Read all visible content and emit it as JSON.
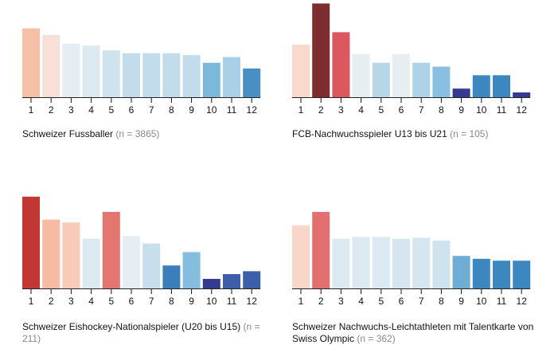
{
  "colors": {
    "1": "#f6bba2",
    "2": "#7d2d2d",
    "3": "#e05a60",
    "4": "#e6eef2",
    "5": "#b7d7e9",
    "6": "#e7eef1",
    "7": "#acd3e8",
    "8": "#89bfe0",
    "9": "#343b91",
    "10": "#3d87c0",
    "11": "#3d87c0",
    "12": "#343b91"
  },
  "chart_data": [
    {
      "type": "bar",
      "title": "Schweizer Fussballer",
      "n_label": "(n = 3865)",
      "categories": [
        "1",
        "2",
        "3",
        "4",
        "5",
        "6",
        "7",
        "8",
        "9",
        "10",
        "11",
        "12"
      ],
      "values": [
        0.72,
        0.65,
        0.56,
        0.54,
        0.49,
        0.46,
        0.46,
        0.46,
        0.44,
        0.36,
        0.42,
        0.3
      ],
      "colors": [
        "#f6c0a7",
        "#f8dfd7",
        "#e3edf2",
        "#dce9f0",
        "#cfe3ee",
        "#c2dcec",
        "#c2dcec",
        "#c2dcec",
        "#c2dcec",
        "#7cb8da",
        "#a9d0e7",
        "#4a8fc4"
      ],
      "ylim": [
        0,
        1
      ]
    },
    {
      "type": "bar",
      "title": "FCB-Nachwuchsspieler U13 bis U21",
      "n_label": "(n = 105)",
      "categories": [
        "1",
        "2",
        "3",
        "4",
        "5",
        "6",
        "7",
        "8",
        "9",
        "10",
        "11",
        "12"
      ],
      "values": [
        0.55,
        0.98,
        0.68,
        0.45,
        0.36,
        0.45,
        0.36,
        0.32,
        0.09,
        0.23,
        0.23,
        0.05
      ],
      "colors": [
        "#f9d9cd",
        "#7d2d2d",
        "#dc5860",
        "#e6eef2",
        "#b7d7e9",
        "#e7eef1",
        "#acd3e8",
        "#89bfe0",
        "#343b91",
        "#3d87c0",
        "#3d87c0",
        "#343b91"
      ],
      "ylim": [
        0,
        1
      ]
    },
    {
      "type": "bar",
      "title": "Schweizer Eishockey-Nationalspieler (U20 bis U15)",
      "n_label": "(n = 211)",
      "categories": [
        "1",
        "2",
        "3",
        "4",
        "5",
        "6",
        "7",
        "8",
        "9",
        "10",
        "11",
        "12"
      ],
      "values": [
        0.96,
        0.72,
        0.69,
        0.52,
        0.8,
        0.55,
        0.47,
        0.24,
        0.38,
        0.1,
        0.15,
        0.18
      ],
      "colors": [
        "#c23634",
        "#f6bba2",
        "#f7cbb8",
        "#dde9f0",
        "#e3766f",
        "#e5eef2",
        "#c7dfed",
        "#3a7fb9",
        "#85bdde",
        "#343b91",
        "#3d5ea8",
        "#3d5ea8"
      ],
      "ylim": [
        0,
        1
      ]
    },
    {
      "type": "bar",
      "title": "Schweizer Nachwuchs-Leichtathleten mit Talentkarte von Swiss Olympic",
      "n_label": "(n = 362)",
      "categories": [
        "1",
        "2",
        "3",
        "4",
        "5",
        "6",
        "7",
        "8",
        "9",
        "10",
        "11",
        "12"
      ],
      "values": [
        0.66,
        0.8,
        0.52,
        0.54,
        0.54,
        0.52,
        0.53,
        0.5,
        0.34,
        0.31,
        0.29,
        0.29
      ],
      "colors": [
        "#f9d6ca",
        "#e3706f",
        "#dbe9f1",
        "#dbe9f1",
        "#dbe9f1",
        "#d6e6f0",
        "#d6e6f0",
        "#cfe3ee",
        "#6eaed5",
        "#3d87c0",
        "#3d87c0",
        "#3d87c0"
      ],
      "ylim": [
        0,
        1
      ]
    }
  ]
}
